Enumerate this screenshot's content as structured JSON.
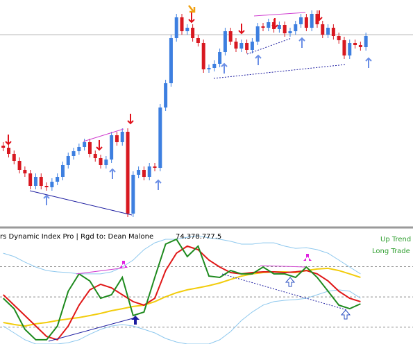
{
  "chart_data": [
    {
      "type": "candlestick",
      "up_color": "#3d7fe0",
      "down_color": "#d81820",
      "xlim": [
        -0.6,
        75.7
      ],
      "ylim": [
        0,
        320
      ],
      "price_line": 270,
      "price_line_color": "#b8b8b8",
      "open": [
        110,
        107,
        98,
        88,
        75,
        70,
        52,
        65,
        52,
        50,
        58,
        65,
        82,
        95,
        102,
        108,
        115,
        98,
        92,
        82,
        90,
        125,
        115,
        130,
        12,
        68,
        75,
        65,
        80,
        78,
        165,
        200,
        265,
        295,
        275,
        280,
        265,
        258,
        220,
        222,
        228,
        245,
        275,
        260,
        250,
        258,
        248,
        260,
        282,
        280,
        288,
        278,
        284,
        272,
        275,
        285,
        295,
        280,
        300,
        285,
        270,
        280,
        268,
        262,
        240,
        258,
        255,
        252
      ],
      "high": [
        115,
        112,
        103,
        93,
        80,
        75,
        70,
        70,
        57,
        63,
        70,
        87,
        100,
        107,
        113,
        120,
        120,
        103,
        97,
        95,
        130,
        130,
        135,
        135,
        73,
        80,
        80,
        85,
        85,
        170,
        205,
        270,
        300,
        300,
        285,
        285,
        270,
        263,
        227,
        233,
        250,
        280,
        280,
        265,
        263,
        263,
        265,
        287,
        287,
        293,
        293,
        289,
        289,
        280,
        290,
        300,
        300,
        305,
        305,
        290,
        285,
        285,
        273,
        267,
        263,
        263,
        260,
        273
      ],
      "low": [
        102,
        93,
        83,
        70,
        65,
        47,
        47,
        47,
        45,
        45,
        53,
        60,
        77,
        90,
        97,
        103,
        93,
        87,
        77,
        77,
        85,
        110,
        110,
        7,
        7,
        63,
        60,
        60,
        73,
        73,
        160,
        195,
        260,
        270,
        270,
        260,
        253,
        215,
        215,
        217,
        223,
        240,
        255,
        245,
        245,
        243,
        243,
        255,
        275,
        275,
        273,
        273,
        267,
        267,
        270,
        280,
        275,
        275,
        280,
        265,
        265,
        263,
        257,
        235,
        235,
        250,
        247,
        247
      ],
      "close": [
        107,
        98,
        88,
        75,
        70,
        52,
        65,
        52,
        50,
        58,
        65,
        82,
        95,
        102,
        108,
        115,
        98,
        92,
        82,
        90,
        125,
        115,
        130,
        12,
        68,
        75,
        65,
        80,
        78,
        165,
        200,
        265,
        295,
        275,
        280,
        265,
        258,
        220,
        222,
        228,
        245,
        275,
        260,
        250,
        258,
        248,
        260,
        282,
        280,
        288,
        278,
        284,
        272,
        275,
        285,
        295,
        280,
        300,
        285,
        270,
        280,
        268,
        262,
        240,
        258,
        255,
        252,
        268
      ]
    },
    {
      "type": "line",
      "title": "rs Dynamic Index Pro | Rgd to: Dean Malone",
      "readouts": [
        74.3,
        78.7,
        77.5
      ],
      "annotations": [
        {
          "text": "Up Trend",
          "color": "#2e9e2e"
        },
        {
          "text": "Long Trade",
          "color": "#2e9e2e"
        }
      ],
      "xlim": [
        -0.6,
        75.7
      ],
      "ylim": [
        22,
        88
      ],
      "levels": [
        68,
        50,
        32
      ],
      "x": [
        0,
        2,
        4,
        6,
        8,
        10,
        12,
        14,
        16,
        18,
        20,
        22,
        24,
        26,
        28,
        30,
        32,
        34,
        36,
        38,
        40,
        42,
        44,
        46,
        48,
        50,
        52,
        54,
        56,
        58,
        60,
        62,
        64,
        66
      ],
      "series": [
        {
          "color": "#8ec8ee",
          "values": [
            76.0,
            74.0,
            70.7,
            67.8,
            65.7,
            64.9,
            64.5,
            63.7,
            63.7,
            63.7,
            64.9,
            67.8,
            71.9,
            78.1,
            82.2,
            84.3,
            84.3,
            85.5,
            86.4,
            85.1,
            84.3,
            83.1,
            81.4,
            81.4,
            82.2,
            82.2,
            80.2,
            78.9,
            79.3,
            78.1,
            76.0,
            71.9,
            67.8,
            63.7
          ]
        },
        {
          "color": "#8ec8ee",
          "values": [
            32.7,
            28.6,
            24.5,
            22,
            22,
            22,
            22.8,
            24.5,
            27.8,
            30.7,
            32.7,
            33.6,
            32.7,
            30.7,
            28.6,
            25.3,
            23.2,
            22,
            22,
            22,
            24.5,
            29.4,
            36.0,
            41.0,
            45.1,
            47.2,
            48.0,
            48.4,
            49.2,
            51.3,
            53.4,
            54.2,
            53.4,
            49.2
          ]
        },
        {
          "color": "#f2cc0c",
          "values": [
            34.8,
            33.6,
            32.7,
            34.0,
            34.8,
            36.0,
            36.9,
            37.7,
            38.9,
            40.2,
            41.8,
            43.0,
            44.3,
            45.1,
            47.2,
            50.1,
            52.5,
            54.2,
            55.4,
            56.7,
            58.3,
            60.4,
            62.4,
            63.7,
            64.5,
            64.9,
            64.9,
            64.5,
            65.7,
            66.6,
            67.0,
            65.7,
            63.7,
            61.6
          ]
        },
        {
          "color": "#e01818",
          "values": [
            51.3,
            45.1,
            38.9,
            32.7,
            26.5,
            24.5,
            32.7,
            45.1,
            54.2,
            57.5,
            55.4,
            51.3,
            47.2,
            45.1,
            49.2,
            65.7,
            76.0,
            80.2,
            78.1,
            71.9,
            67.8,
            64.5,
            63.7,
            64.5,
            64.9,
            64.9,
            64.5,
            64.9,
            65.7,
            63.7,
            59.5,
            53.4,
            49.2,
            47.2
          ]
        },
        {
          "color": "#1e8a1e",
          "values": [
            49.2,
            43.0,
            30.7,
            24.5,
            24.5,
            32.7,
            53.4,
            63.7,
            59.5,
            49.2,
            51.3,
            61.6,
            38.9,
            41.0,
            61.6,
            81.4,
            84.3,
            74.0,
            80.2,
            62.4,
            61.6,
            65.7,
            63.7,
            63.7,
            67.8,
            63.7,
            63.7,
            61.6,
            67.8,
            61.6,
            53.4,
            45.1,
            43.0,
            45.9
          ]
        }
      ]
    }
  ]
}
